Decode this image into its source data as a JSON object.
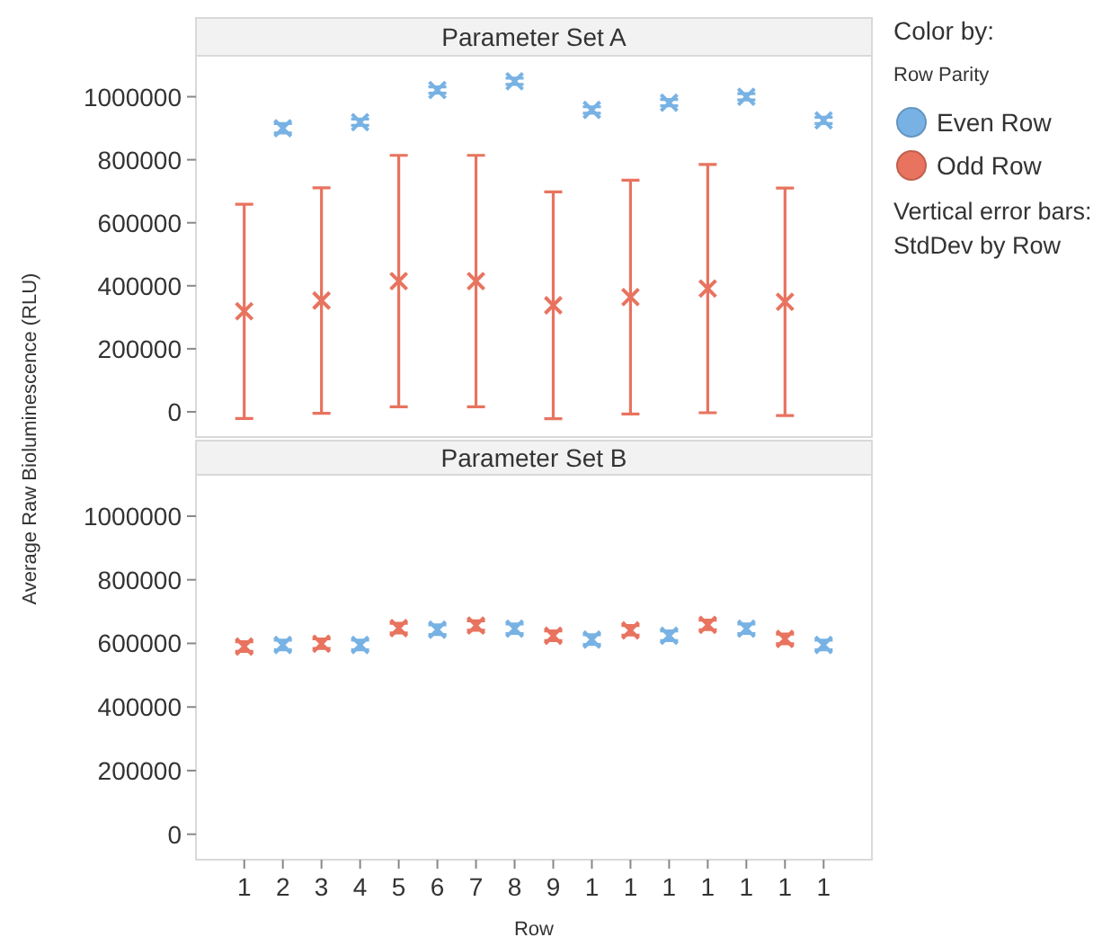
{
  "chart_data": [
    {
      "type": "scatter",
      "title": "Parameter Set A",
      "ylabel": "Average Raw Bioluminescence (RLU)",
      "legend_title": "Color by:",
      "annotations": [
        "Row Parity",
        "Vertical error bars: StdDev by Row"
      ],
      "categories": [
        "1",
        "2",
        "3",
        "4",
        "5",
        "6",
        "7",
        "8",
        "9",
        "1",
        "1",
        "1",
        "1",
        "1",
        "1",
        "1"
      ],
      "ylim": [
        -80000,
        1130000
      ],
      "yticks": [
        0,
        200000,
        400000,
        600000,
        800000,
        1000000
      ],
      "tick_labels": "y",
      "grid": false,
      "legend": "right",
      "marker": "cross",
      "series": [
        {
          "name": "Even Row",
          "color": "#78b2e4",
          "values": [
            null,
            900000,
            null,
            919000,
            null,
            1021000,
            null,
            1049000,
            null,
            958000,
            null,
            981000,
            null,
            1000000,
            null,
            925000
          ],
          "errors": [
            null,
            15000,
            null,
            10000,
            null,
            10000,
            null,
            10000,
            null,
            10000,
            null,
            10000,
            null,
            10000,
            null,
            10000
          ]
        },
        {
          "name": "Odd Row",
          "color": "#e8735f",
          "values": [
            319000,
            null,
            353000,
            null,
            415000,
            null,
            415000,
            null,
            338000,
            null,
            364000,
            null,
            391000,
            null,
            349000,
            null
          ],
          "errors": [
            340000,
            null,
            358000,
            null,
            399000,
            null,
            399000,
            null,
            360000,
            null,
            371000,
            null,
            394000,
            null,
            361000,
            null
          ]
        }
      ]
    },
    {
      "type": "scatter",
      "title": "Parameter Set B",
      "xlabel": "Row",
      "categories": [
        "1",
        "2",
        "3",
        "4",
        "5",
        "6",
        "7",
        "8",
        "9",
        "1",
        "1",
        "1",
        "1",
        "1",
        "1",
        "1"
      ],
      "ylim": [
        -80000,
        1130000
      ],
      "yticks": [
        0,
        200000,
        400000,
        600000,
        800000,
        1000000
      ],
      "grid": false,
      "marker": "cross",
      "series": [
        {
          "color": "#78b2e4",
          "values": [
            null,
            595000,
            null,
            595000,
            null,
            643000,
            null,
            646000,
            null,
            612000,
            null,
            624000,
            null,
            646000,
            null,
            595000
          ],
          "errors": [
            null,
            15000,
            null,
            15000,
            null,
            15000,
            null,
            15000,
            null,
            15000,
            null,
            15000,
            null,
            15000,
            null,
            15000
          ]
        },
        {
          "color": "#e8735f",
          "values": [
            590000,
            null,
            599000,
            null,
            648000,
            null,
            656000,
            null,
            624000,
            null,
            641000,
            null,
            658000,
            null,
            614000,
            null
          ],
          "errors": [
            15000,
            null,
            15000,
            null,
            15000,
            null,
            15000,
            null,
            15000,
            null,
            15000,
            null,
            15000,
            null,
            15000,
            null
          ]
        }
      ]
    }
  ]
}
